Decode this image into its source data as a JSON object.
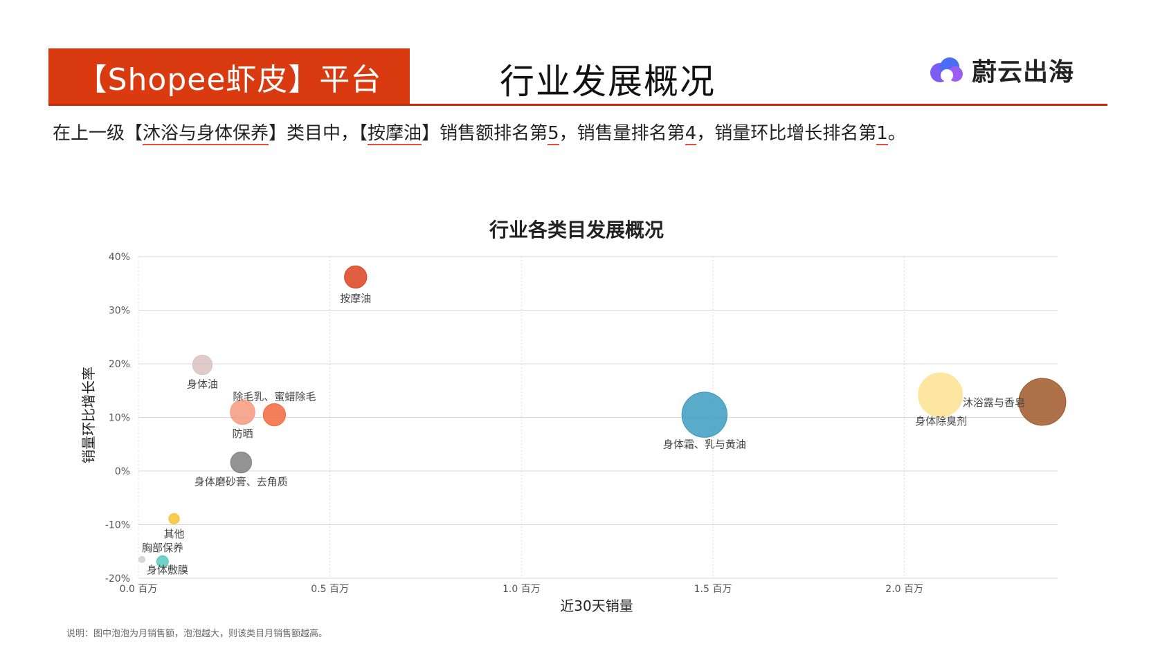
{
  "header": {
    "platform_label": "【Shopee虾皮】平台",
    "page_title": "行业发展概况",
    "logo_text": "蔚云出海",
    "logo_icon": "cloud-logo-icon"
  },
  "intro": {
    "part1": "在上一级【",
    "parent_category": "沐浴与身体保养",
    "part2": "】类目中，【",
    "category": "按摩油",
    "part3": "】销售额排名第",
    "sales_rank": "5",
    "part4": "，销售量排名第",
    "volume_rank": "4",
    "part5": "，销量环比增长排名第",
    "growth_rank": "1",
    "part6": "。"
  },
  "footnote": "说明：图中泡泡为月销售额，泡泡越大，则该类目月销售额越高。",
  "colors": {
    "header_band": "#d93a0f",
    "header_line": "#c8290a",
    "gridline": "#d9d9d9"
  },
  "chart_data": {
    "type": "scatter",
    "title": "行业各类目发展概况",
    "xlabel": "近30天销量",
    "ylabel": "销量环比增长率",
    "xlim": [
      0,
      2.4
    ],
    "ylim": [
      -20,
      40
    ],
    "x_unit": "百万",
    "y_unit": "%",
    "x_ticks": [
      "0.0 百万",
      "0.5 百万",
      "1.0 百万",
      "1.5 百万",
      "2.0 百万"
    ],
    "x_tick_values": [
      0,
      0.5,
      1.0,
      1.5,
      2.0
    ],
    "y_ticks": [
      "40%",
      "30%",
      "20%",
      "10%",
      "0%",
      "-10%",
      "-20%"
    ],
    "y_tick_values": [
      40,
      30,
      20,
      10,
      0,
      -10,
      -20
    ],
    "grid": true,
    "points": [
      {
        "label": "按摩油",
        "x": 0.567,
        "y": 36.2,
        "size": 0.9,
        "color": "#d9431e"
      },
      {
        "label": "身体油",
        "x": 0.167,
        "y": 19.8,
        "size": 0.7,
        "color": "#dcc1c1"
      },
      {
        "label": "防晒",
        "x": 0.272,
        "y": 11.0,
        "size": 1.1,
        "color": "#f59a7d"
      },
      {
        "label": "除毛乳、蜜蜡除毛",
        "x": 0.355,
        "y": 10.5,
        "size": 0.9,
        "color": "#f26a3d"
      },
      {
        "label": "身体磨砂膏、去角质",
        "x": 0.268,
        "y": 1.6,
        "size": 0.8,
        "color": "#808080"
      },
      {
        "label": "其他",
        "x": 0.093,
        "y": -8.9,
        "size": 0.2,
        "color": "#f6c231"
      },
      {
        "label": "胸部保养",
        "x": 0.009,
        "y": -16.5,
        "size": 0.07,
        "color": "#d0d0d0"
      },
      {
        "label": "身体敷膜",
        "x": 0.063,
        "y": -16.9,
        "size": 0.25,
        "color": "#5cc9c0"
      },
      {
        "label": "身体霜、乳与黄油",
        "x": 1.478,
        "y": 10.5,
        "size": 3.7,
        "color": "#3d9bbf"
      },
      {
        "label": "身体除臭剂",
        "x": 2.094,
        "y": 14.2,
        "size": 3.5,
        "color": "#fde38f"
      },
      {
        "label": "沐浴露与香皂",
        "x": 2.36,
        "y": 12.9,
        "size": 4.0,
        "color": "#a0582a"
      }
    ]
  }
}
